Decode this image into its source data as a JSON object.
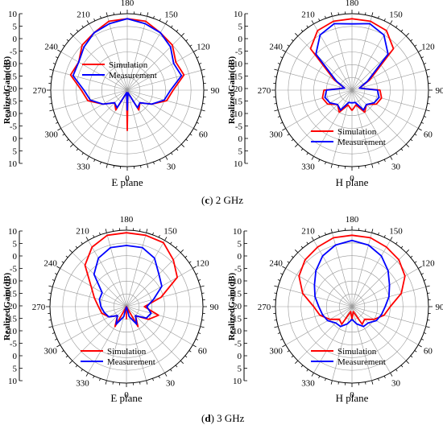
{
  "figure": {
    "panel_c_caption": {
      "prefix": "(",
      "letter": "c",
      "suffix": ") 2 GHz"
    },
    "panel_d_caption": {
      "prefix": "(",
      "letter": "d",
      "suffix": ") 3 GHz"
    }
  },
  "colors": {
    "simulation": "#ff0000",
    "measurement": "#0000ff",
    "grid": "#999999"
  },
  "chart_data": [
    {
      "type": "polar-line",
      "frequency": "2 GHz",
      "plane": "E plane",
      "ylabel": "RealizedGain(dB)",
      "rlim": [
        -20,
        10
      ],
      "grid": true,
      "radial_ticks": [
        "10",
        "5",
        "0",
        "-5",
        "-10",
        "-15",
        "-20"
      ],
      "angle_ticks": [
        0,
        30,
        60,
        90,
        120,
        150,
        180,
        210,
        240,
        270,
        300,
        330
      ],
      "legend_placement": "center",
      "series": [
        {
          "name": "Simulation",
          "color": "#ff0000",
          "angle": [
            0,
            15,
            30,
            45,
            60,
            75,
            90,
            105,
            120,
            135,
            150,
            165,
            180,
            195,
            210,
            225,
            240,
            255,
            270,
            285,
            300,
            315,
            330,
            345,
            360
          ],
          "gain": [
            -4,
            -19,
            -11,
            -13,
            -9,
            -4,
            -2,
            3,
            2,
            5,
            6,
            8,
            8,
            8,
            6,
            5,
            2,
            3,
            -2,
            -4,
            -9,
            -13,
            -11,
            -19,
            -4
          ]
        },
        {
          "name": "Measurement",
          "color": "#0000ff",
          "angle": [
            0,
            15,
            30,
            45,
            60,
            75,
            90,
            105,
            120,
            135,
            150,
            165,
            180,
            195,
            210,
            225,
            240,
            255,
            270,
            285,
            300,
            315,
            330,
            345,
            360
          ],
          "gain": [
            -12,
            -19,
            -12,
            -13,
            -9,
            -5,
            -3,
            2,
            1,
            4,
            6,
            7,
            8,
            7,
            6,
            4,
            2,
            2,
            -3,
            -5,
            -9,
            -13,
            -12,
            -19,
            -12
          ]
        }
      ]
    },
    {
      "type": "polar-line",
      "frequency": "2 GHz",
      "plane": "H plane",
      "ylabel": "RealizedGain(dB)",
      "rlim": [
        -20,
        10
      ],
      "grid": true,
      "radial_ticks": [
        "10",
        "5",
        "0",
        "-5",
        "-10",
        "-15",
        "-20"
      ],
      "angle_ticks": [
        0,
        30,
        60,
        90,
        120,
        150,
        180,
        210,
        240,
        270,
        300,
        330
      ],
      "legend_placement": "bottom-center",
      "series": [
        {
          "name": "Simulation",
          "color": "#ff0000",
          "angle": [
            0,
            15,
            30,
            45,
            60,
            75,
            90,
            105,
            120,
            135,
            150,
            165,
            180,
            195,
            210,
            225,
            240,
            255,
            270,
            285,
            300,
            315,
            330,
            345,
            360
          ],
          "gain": [
            -12,
            -14,
            -10,
            -12,
            -9,
            -8,
            -9,
            -17,
            -12,
            3,
            7,
            8,
            8,
            8,
            7,
            3,
            -12,
            -17,
            -9,
            -8,
            -9,
            -12,
            -10,
            -14,
            -12
          ]
        },
        {
          "name": "Measurement",
          "color": "#0000ff",
          "angle": [
            0,
            15,
            30,
            45,
            60,
            75,
            90,
            105,
            120,
            135,
            150,
            165,
            180,
            195,
            210,
            225,
            240,
            255,
            270,
            285,
            300,
            315,
            330,
            345,
            360
          ],
          "gain": [
            -15,
            -15,
            -11,
            -12,
            -10,
            -9,
            -10,
            -17,
            -13,
            0,
            5,
            7,
            6,
            7,
            5,
            0,
            -13,
            -17,
            -10,
            -9,
            -10,
            -12,
            -11,
            -15,
            -15
          ]
        }
      ]
    },
    {
      "type": "polar-line",
      "frequency": "3 GHz",
      "plane": "E plane",
      "ylabel": "RealizedGain(dB)",
      "rlim": [
        -20,
        10
      ],
      "grid": true,
      "radial_ticks": [
        "10",
        "5",
        "0",
        "-5",
        "-10",
        "-15",
        "-20"
      ],
      "angle_ticks": [
        0,
        30,
        60,
        90,
        120,
        150,
        180,
        210,
        240,
        270,
        300,
        330
      ],
      "legend_placement": "bottom-center",
      "series": [
        {
          "name": "Simulation",
          "color": "#ff0000",
          "angle": [
            0,
            15,
            30,
            45,
            60,
            75,
            90,
            105,
            120,
            135,
            150,
            165,
            180,
            195,
            210,
            225,
            240,
            255,
            270,
            285,
            300,
            315,
            330,
            345,
            360
          ],
          "gain": [
            -15,
            -20,
            -11,
            -15,
            -10,
            -7,
            -13,
            -6,
            3,
            6,
            9,
            9,
            9,
            9,
            7,
            3,
            -4,
            -7,
            -9,
            -10,
            -12,
            -15,
            -11,
            -20,
            -15
          ]
        },
        {
          "name": "Measurement",
          "color": "#0000ff",
          "angle": [
            0,
            15,
            30,
            45,
            60,
            75,
            90,
            105,
            120,
            135,
            150,
            165,
            180,
            195,
            210,
            225,
            240,
            255,
            270,
            285,
            300,
            315,
            330,
            345,
            360
          ],
          "gain": [
            -20,
            -16,
            -12,
            -15,
            -11,
            -10,
            -12,
            -9,
            -4,
            -2,
            2,
            4,
            4,
            4,
            2,
            -2,
            -9,
            -9,
            -10,
            -11,
            -12,
            -15,
            -12,
            -16,
            -20
          ]
        }
      ]
    },
    {
      "type": "polar-line",
      "frequency": "3 GHz",
      "plane": "H plane",
      "ylabel": "RealizedGain(dB)",
      "rlim": [
        -20,
        10
      ],
      "grid": true,
      "radial_ticks": [
        "10",
        "5",
        "0",
        "-5",
        "-10",
        "-15",
        "-20"
      ],
      "angle_ticks": [
        0,
        30,
        60,
        90,
        120,
        150,
        180,
        210,
        240,
        270,
        300,
        330
      ],
      "legend_placement": "bottom-center",
      "series": [
        {
          "name": "Simulation",
          "color": "#ff0000",
          "angle": [
            0,
            15,
            30,
            45,
            60,
            75,
            90,
            105,
            120,
            135,
            150,
            165,
            180,
            195,
            210,
            225,
            240,
            255,
            270,
            285,
            300,
            315,
            330,
            345,
            360
          ],
          "gain": [
            -15,
            -18,
            -12,
            -13,
            -10,
            -7,
            -5,
            0,
            4,
            6,
            7,
            8,
            8,
            8,
            7,
            6,
            4,
            0,
            -5,
            -7,
            -10,
            -13,
            -12,
            -18,
            -15
          ]
        },
        {
          "name": "Measurement",
          "color": "#0000ff",
          "angle": [
            0,
            15,
            30,
            45,
            60,
            75,
            90,
            105,
            120,
            135,
            150,
            165,
            180,
            195,
            210,
            225,
            240,
            255,
            270,
            285,
            300,
            315,
            330,
            345,
            360
          ],
          "gain": [
            -15,
            -13,
            -11,
            -11,
            -9,
            -8,
            -7,
            -5,
            -3,
            0,
            3,
            5,
            6,
            5,
            3,
            0,
            -3,
            -5,
            -7,
            -8,
            -9,
            -11,
            -11,
            -13,
            -15
          ]
        }
      ]
    }
  ]
}
